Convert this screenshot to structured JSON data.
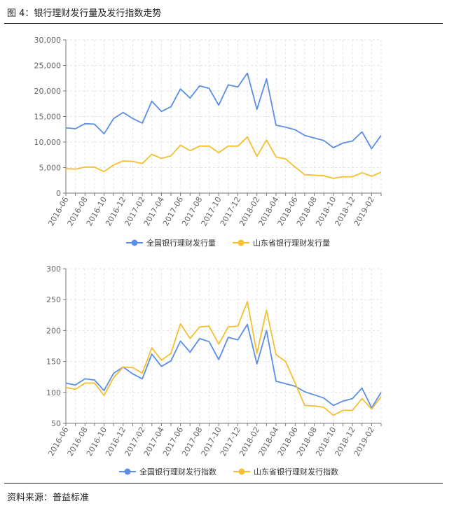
{
  "figure_title": "图 4：银行理财发行量及发行指数走势",
  "source_text": "资料来源：普益标准",
  "chart_data": [
    {
      "type": "line",
      "title": "",
      "xlabel": "",
      "ylabel": "",
      "ylim": [
        0,
        30000
      ],
      "yticks": [
        "0",
        "5,000",
        "10,000",
        "15,000",
        "20,000",
        "25,000",
        "30,000"
      ],
      "ytick_values": [
        0,
        5000,
        10000,
        15000,
        20000,
        25000,
        30000
      ],
      "x": [
        "2016-06",
        "2016-07",
        "2016-08",
        "2016-09",
        "2016-10",
        "2016-11",
        "2016-12",
        "2017-01",
        "2017-02",
        "2017-03",
        "2017-04",
        "2017-05",
        "2017-06",
        "2017-07",
        "2017-08",
        "2017-09",
        "2017-10",
        "2017-11",
        "2017-12",
        "2018-01",
        "2018-02",
        "2018-03",
        "2018-04",
        "2018-05",
        "2018-06",
        "2018-07",
        "2018-08",
        "2018-09",
        "2018-10",
        "2018-11",
        "2018-12",
        "2019-01",
        "2019-02",
        "2019-03"
      ],
      "xtick_labels": [
        "2016-06",
        "2016-08",
        "2016-10",
        "2016-12",
        "2017-02",
        "2017-04",
        "2017-06",
        "2017-08",
        "2017-10",
        "2017-12",
        "2018-02",
        "2018-04",
        "2018-06",
        "2018-08",
        "2018-10",
        "2018-12",
        "2019-02"
      ],
      "grid": true,
      "legend_position": "bottom-center",
      "series": [
        {
          "name": "全国银行理财发行量",
          "color": "#5b8ee6",
          "values": [
            12800,
            12600,
            13600,
            13500,
            11600,
            14600,
            15800,
            14600,
            13700,
            18000,
            16000,
            16900,
            20400,
            18600,
            21000,
            20500,
            17200,
            21200,
            20800,
            23500,
            16400,
            22400,
            13300,
            12900,
            12400,
            11300,
            10800,
            10300,
            8900,
            9800,
            10200,
            12000,
            8700,
            11300
          ]
        },
        {
          "name": "山东省银行理财发行量",
          "color": "#f5c02f",
          "values": [
            4800,
            4700,
            5100,
            5100,
            4200,
            5500,
            6300,
            6200,
            5800,
            7600,
            6800,
            7300,
            9400,
            8300,
            9200,
            9200,
            7900,
            9200,
            9200,
            11000,
            7200,
            10400,
            7100,
            6700,
            5100,
            3600,
            3500,
            3400,
            2900,
            3200,
            3200,
            4000,
            3300,
            4100
          ]
        }
      ]
    },
    {
      "type": "line",
      "title": "",
      "xlabel": "",
      "ylabel": "",
      "ylim": [
        50,
        300
      ],
      "yticks": [
        "50",
        "100",
        "150",
        "200",
        "250",
        "300"
      ],
      "ytick_values": [
        50,
        100,
        150,
        200,
        250,
        300
      ],
      "x": [
        "2016-06",
        "2016-07",
        "2016-08",
        "2016-09",
        "2016-10",
        "2016-11",
        "2016-12",
        "2017-01",
        "2017-02",
        "2017-03",
        "2017-04",
        "2017-05",
        "2017-06",
        "2017-07",
        "2017-08",
        "2017-09",
        "2017-10",
        "2017-11",
        "2017-12",
        "2018-01",
        "2018-02",
        "2018-03",
        "2018-04",
        "2018-05",
        "2018-06",
        "2018-07",
        "2018-08",
        "2018-09",
        "2018-10",
        "2018-11",
        "2018-12",
        "2019-01",
        "2019-02",
        "2019-03"
      ],
      "xtick_labels": [
        "2016-06",
        "2016-08",
        "2016-10",
        "2016-12",
        "2017-02",
        "2017-04",
        "2017-06",
        "2017-08",
        "2017-10",
        "2017-12",
        "2018-02",
        "2018-04",
        "2018-06",
        "2018-08",
        "2018-10",
        "2018-12",
        "2019-02"
      ],
      "grid": true,
      "legend_position": "bottom-center",
      "series": [
        {
          "name": "全国银行理财发行指数",
          "color": "#5b8ee6",
          "values": [
            115,
            112,
            122,
            120,
            103,
            131,
            141,
            130,
            122,
            162,
            142,
            151,
            183,
            165,
            187,
            182,
            153,
            189,
            185,
            210,
            146,
            200,
            118,
            114,
            110,
            101,
            96,
            91,
            79,
            86,
            90,
            107,
            75,
            100
          ]
        },
        {
          "name": "山东省银行理财发行指数",
          "color": "#f5c02f",
          "values": [
            108,
            105,
            115,
            115,
            95,
            124,
            141,
            140,
            131,
            172,
            152,
            163,
            211,
            187,
            206,
            207,
            178,
            206,
            207,
            247,
            163,
            233,
            161,
            150,
            115,
            79,
            78,
            76,
            63,
            71,
            71,
            90,
            73,
            93
          ]
        }
      ]
    }
  ]
}
